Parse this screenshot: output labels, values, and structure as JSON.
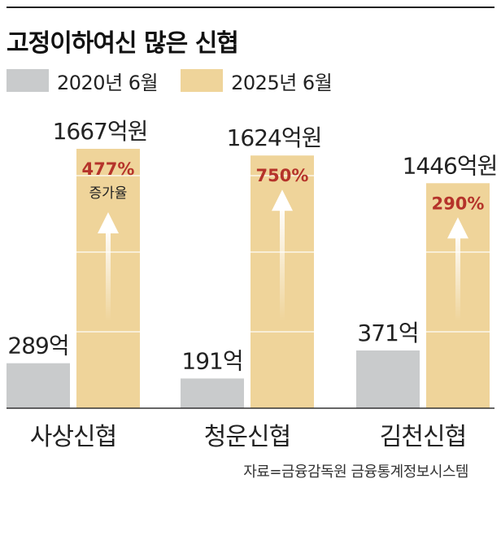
{
  "title": "고정이하여신 많은 신협",
  "legend": {
    "series_2020": "2020년 6월",
    "series_2025": "2025년 6월"
  },
  "colors": {
    "series_2020": "#c9cbcc",
    "series_2025": "#efd49a",
    "increase_text": "#b5332a",
    "arrow": "#ffffff"
  },
  "source": "자료=금융감독원 금융통계정보시스템",
  "chart_data": {
    "type": "bar",
    "categories": [
      "사상신협",
      "청운신협",
      "김천신협"
    ],
    "series": [
      {
        "name": "2020년 6월",
        "values": [
          289,
          191,
          371
        ],
        "labels": [
          "289억",
          "191억",
          "371억"
        ]
      },
      {
        "name": "2025년 6월",
        "values": [
          1667,
          1624,
          1446
        ],
        "labels": [
          "1667억원",
          "1624억원",
          "1446억원"
        ]
      }
    ],
    "increase_rates": [
      "477%",
      "750%",
      "290%"
    ],
    "increase_caption": "증가율",
    "unit": "억원",
    "ylim": [
      0,
      1700
    ]
  }
}
